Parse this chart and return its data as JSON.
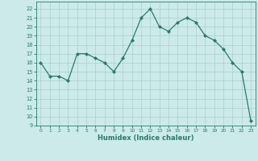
{
  "title": "",
  "xlabel": "Humidex (Indice chaleur)",
  "line_color": "#2a7a6a",
  "bg_color": "#cceaea",
  "grid_color": "#aacece",
  "spine_color": "#2a7a6a",
  "tick_color": "#2a7a6a",
  "ylim": [
    9,
    22.8
  ],
  "xlim": [
    -0.5,
    23.5
  ],
  "yticks": [
    9,
    10,
    11,
    12,
    13,
    14,
    15,
    16,
    17,
    18,
    19,
    20,
    21,
    22
  ],
  "xticks": [
    0,
    1,
    2,
    3,
    4,
    5,
    6,
    7,
    8,
    9,
    10,
    11,
    12,
    13,
    14,
    15,
    16,
    17,
    18,
    19,
    20,
    21,
    22,
    23
  ],
  "x_vals": [
    0,
    1,
    2,
    3,
    4,
    5,
    6,
    7,
    8,
    9,
    10,
    11,
    12,
    13,
    14,
    15,
    16,
    17,
    18,
    19,
    20,
    21,
    22,
    23
  ],
  "y_vals": [
    16,
    14.5,
    14.5,
    14,
    17,
    17,
    16.5,
    16,
    15,
    16.5,
    18.5,
    21,
    22,
    20,
    19.5,
    20.5,
    21,
    20.5,
    19,
    18.5,
    17.5,
    16,
    15,
    9.5
  ]
}
